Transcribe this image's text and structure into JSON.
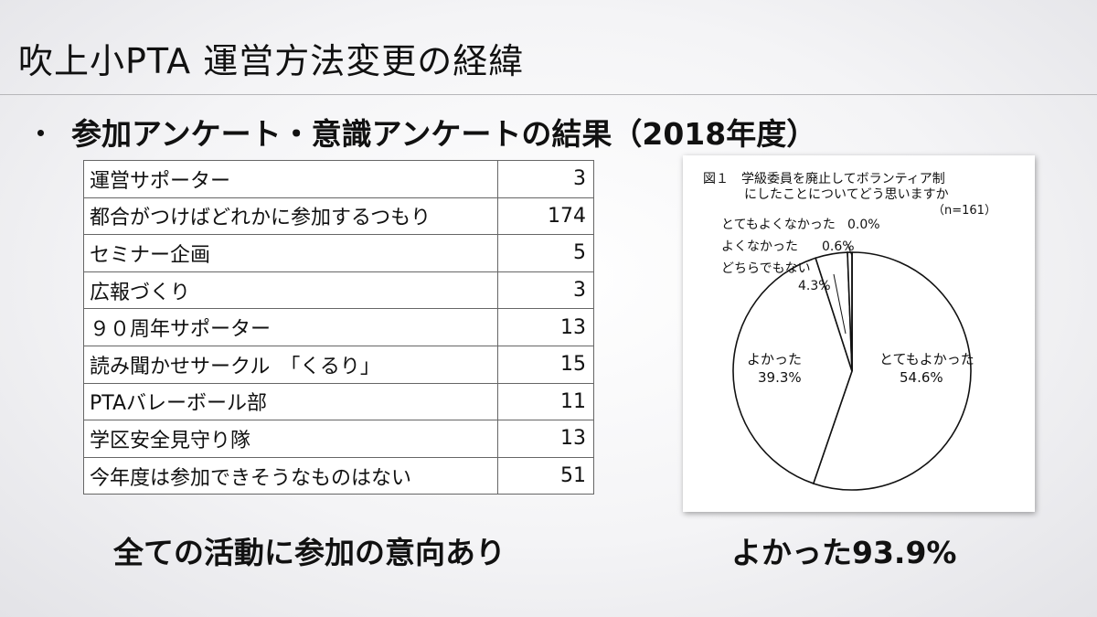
{
  "slide": {
    "title": "吹上小PTA 運営方法変更の経緯",
    "bullet_symbol": "・",
    "bullet_text": "参加アンケート・意識アンケートの結果（2018年度）",
    "left_caption": "全ての活動に参加の意向あり",
    "right_caption": "よかった93.9%"
  },
  "table": {
    "rows": [
      {
        "label": "運営サポーター",
        "value": "3"
      },
      {
        "label": "都合がつけばどれかに参加するつもり",
        "value": "174"
      },
      {
        "label": "セミナー企画",
        "value": "5"
      },
      {
        "label": "広報づくり",
        "value": "3"
      },
      {
        "label": "９０周年サポーター",
        "value": "13"
      },
      {
        "label": "読み聞かせサークル　「くるり」",
        "value": "15"
      },
      {
        "label": "PTAバレーボール部",
        "value": "11"
      },
      {
        "label": "学区安全見守り隊",
        "value": "13"
      },
      {
        "label": "今年度は参加できそうなものはない",
        "value": "51"
      }
    ]
  },
  "chart_data": {
    "type": "pie",
    "title_lines": [
      "図１　学級委員を廃止してボランティア制",
      "にしたことについてどう思いますか"
    ],
    "note": "（n=161）",
    "start_angle_deg": 0,
    "direction": "clockwise",
    "slices": [
      {
        "label": "とてもよかった",
        "value": 54.6,
        "value_label": "54.6%"
      },
      {
        "label": "よかった",
        "value": 39.3,
        "value_label": "39.3%"
      },
      {
        "label": "どちらでもない",
        "value": 4.3,
        "value_label": "4.3%"
      },
      {
        "label": "よくなかった",
        "value": 0.6,
        "value_label": "0.6%"
      },
      {
        "label": "とてもよくなかった",
        "value": 0.0,
        "value_label": "0.0%"
      }
    ]
  }
}
